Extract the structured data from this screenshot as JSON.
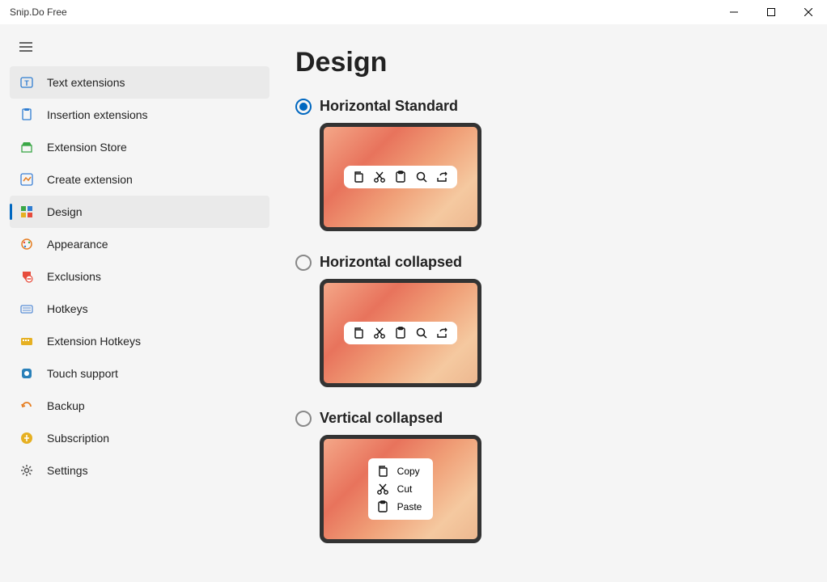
{
  "window": {
    "title": "Snip.Do Free"
  },
  "sidebar": {
    "items": [
      {
        "label": "Text extensions",
        "icon": "text-ext",
        "color": "#2f7dd1"
      },
      {
        "label": "Insertion extensions",
        "icon": "insertion-ext",
        "color": "#2f7dd1"
      },
      {
        "label": "Extension Store",
        "icon": "store",
        "color": "#3aa746"
      },
      {
        "label": "Create extension",
        "icon": "create",
        "color": "#3a7fd5"
      },
      {
        "label": "Design",
        "icon": "design",
        "color": "#3aa746"
      },
      {
        "label": "Appearance",
        "icon": "appearance",
        "color": "#e67e22"
      },
      {
        "label": "Exclusions",
        "icon": "exclusions",
        "color": "#e74c3c"
      },
      {
        "label": "Hotkeys",
        "icon": "hotkeys",
        "color": "#5b8fd6"
      },
      {
        "label": "Extension Hotkeys",
        "icon": "ext-hotkeys",
        "color": "#e6b022"
      },
      {
        "label": "Touch support",
        "icon": "touch",
        "color": "#2980b9"
      },
      {
        "label": "Backup",
        "icon": "backup",
        "color": "#e67e22"
      },
      {
        "label": "Subscription",
        "icon": "subscription",
        "color": "#e6b022"
      },
      {
        "label": "Settings",
        "icon": "settings",
        "color": "#555"
      }
    ],
    "hovered_index": 0,
    "selected_index": 4
  },
  "page": {
    "title": "Design",
    "options": [
      {
        "label": "Horizontal Standard",
        "selected": true,
        "preview": "horizontal"
      },
      {
        "label": "Horizontal collapsed",
        "selected": false,
        "preview": "horizontal"
      },
      {
        "label": "Vertical collapsed",
        "selected": false,
        "preview": "vertical",
        "menu": [
          {
            "icon": "copy",
            "label": "Copy"
          },
          {
            "icon": "cut",
            "label": "Cut"
          },
          {
            "icon": "paste",
            "label": "Paste"
          }
        ]
      }
    ],
    "toolbar_icons": [
      "copy",
      "cut",
      "paste",
      "search",
      "share"
    ]
  },
  "colors": {
    "accent": "#0067c0",
    "sidebar_hover_bg": "#eaeaea",
    "page_bg": "#f5f5f5",
    "preview_border": "#333333"
  }
}
